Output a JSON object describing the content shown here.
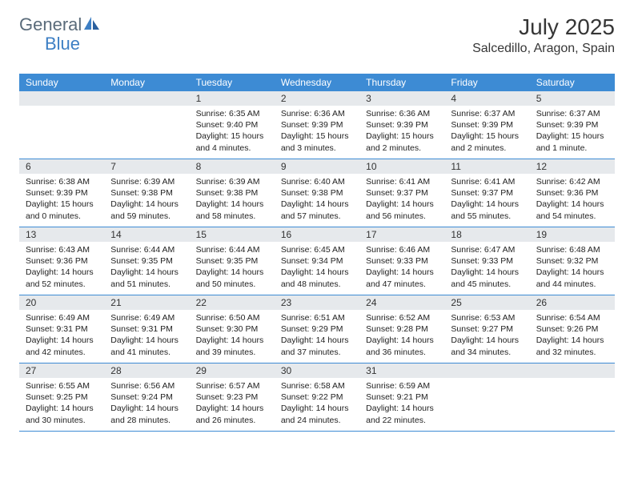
{
  "brand": {
    "part1": "General",
    "part2": "Blue"
  },
  "title": {
    "month": "July 2025",
    "location": "Salcedillo, Aragon, Spain"
  },
  "colors": {
    "header_bg": "#3d8bd4",
    "band_bg": "#e6e9ec",
    "row_divider": "#3d8bd4",
    "text": "#333333",
    "brand_gray": "#5a6b7a",
    "brand_blue": "#3d7fc4",
    "background": "#ffffff"
  },
  "typography": {
    "title_fontsize": 28,
    "location_fontsize": 16,
    "dayheader_fontsize": 12,
    "body_fontsize": 10.5
  },
  "layout": {
    "columns": 7,
    "rows": 5,
    "cell_min_height": 84
  },
  "day_names": [
    "Sunday",
    "Monday",
    "Tuesday",
    "Wednesday",
    "Thursday",
    "Friday",
    "Saturday"
  ],
  "weeks": [
    [
      {
        "date": "",
        "lines": [
          "",
          "",
          "",
          ""
        ]
      },
      {
        "date": "",
        "lines": [
          "",
          "",
          "",
          ""
        ]
      },
      {
        "date": "1",
        "lines": [
          "Sunrise: 6:35 AM",
          "Sunset: 9:40 PM",
          "Daylight: 15 hours",
          "and 4 minutes."
        ]
      },
      {
        "date": "2",
        "lines": [
          "Sunrise: 6:36 AM",
          "Sunset: 9:39 PM",
          "Daylight: 15 hours",
          "and 3 minutes."
        ]
      },
      {
        "date": "3",
        "lines": [
          "Sunrise: 6:36 AM",
          "Sunset: 9:39 PM",
          "Daylight: 15 hours",
          "and 2 minutes."
        ]
      },
      {
        "date": "4",
        "lines": [
          "Sunrise: 6:37 AM",
          "Sunset: 9:39 PM",
          "Daylight: 15 hours",
          "and 2 minutes."
        ]
      },
      {
        "date": "5",
        "lines": [
          "Sunrise: 6:37 AM",
          "Sunset: 9:39 PM",
          "Daylight: 15 hours",
          "and 1 minute."
        ]
      }
    ],
    [
      {
        "date": "6",
        "lines": [
          "Sunrise: 6:38 AM",
          "Sunset: 9:39 PM",
          "Daylight: 15 hours",
          "and 0 minutes."
        ]
      },
      {
        "date": "7",
        "lines": [
          "Sunrise: 6:39 AM",
          "Sunset: 9:38 PM",
          "Daylight: 14 hours",
          "and 59 minutes."
        ]
      },
      {
        "date": "8",
        "lines": [
          "Sunrise: 6:39 AM",
          "Sunset: 9:38 PM",
          "Daylight: 14 hours",
          "and 58 minutes."
        ]
      },
      {
        "date": "9",
        "lines": [
          "Sunrise: 6:40 AM",
          "Sunset: 9:38 PM",
          "Daylight: 14 hours",
          "and 57 minutes."
        ]
      },
      {
        "date": "10",
        "lines": [
          "Sunrise: 6:41 AM",
          "Sunset: 9:37 PM",
          "Daylight: 14 hours",
          "and 56 minutes."
        ]
      },
      {
        "date": "11",
        "lines": [
          "Sunrise: 6:41 AM",
          "Sunset: 9:37 PM",
          "Daylight: 14 hours",
          "and 55 minutes."
        ]
      },
      {
        "date": "12",
        "lines": [
          "Sunrise: 6:42 AM",
          "Sunset: 9:36 PM",
          "Daylight: 14 hours",
          "and 54 minutes."
        ]
      }
    ],
    [
      {
        "date": "13",
        "lines": [
          "Sunrise: 6:43 AM",
          "Sunset: 9:36 PM",
          "Daylight: 14 hours",
          "and 52 minutes."
        ]
      },
      {
        "date": "14",
        "lines": [
          "Sunrise: 6:44 AM",
          "Sunset: 9:35 PM",
          "Daylight: 14 hours",
          "and 51 minutes."
        ]
      },
      {
        "date": "15",
        "lines": [
          "Sunrise: 6:44 AM",
          "Sunset: 9:35 PM",
          "Daylight: 14 hours",
          "and 50 minutes."
        ]
      },
      {
        "date": "16",
        "lines": [
          "Sunrise: 6:45 AM",
          "Sunset: 9:34 PM",
          "Daylight: 14 hours",
          "and 48 minutes."
        ]
      },
      {
        "date": "17",
        "lines": [
          "Sunrise: 6:46 AM",
          "Sunset: 9:33 PM",
          "Daylight: 14 hours",
          "and 47 minutes."
        ]
      },
      {
        "date": "18",
        "lines": [
          "Sunrise: 6:47 AM",
          "Sunset: 9:33 PM",
          "Daylight: 14 hours",
          "and 45 minutes."
        ]
      },
      {
        "date": "19",
        "lines": [
          "Sunrise: 6:48 AM",
          "Sunset: 9:32 PM",
          "Daylight: 14 hours",
          "and 44 minutes."
        ]
      }
    ],
    [
      {
        "date": "20",
        "lines": [
          "Sunrise: 6:49 AM",
          "Sunset: 9:31 PM",
          "Daylight: 14 hours",
          "and 42 minutes."
        ]
      },
      {
        "date": "21",
        "lines": [
          "Sunrise: 6:49 AM",
          "Sunset: 9:31 PM",
          "Daylight: 14 hours",
          "and 41 minutes."
        ]
      },
      {
        "date": "22",
        "lines": [
          "Sunrise: 6:50 AM",
          "Sunset: 9:30 PM",
          "Daylight: 14 hours",
          "and 39 minutes."
        ]
      },
      {
        "date": "23",
        "lines": [
          "Sunrise: 6:51 AM",
          "Sunset: 9:29 PM",
          "Daylight: 14 hours",
          "and 37 minutes."
        ]
      },
      {
        "date": "24",
        "lines": [
          "Sunrise: 6:52 AM",
          "Sunset: 9:28 PM",
          "Daylight: 14 hours",
          "and 36 minutes."
        ]
      },
      {
        "date": "25",
        "lines": [
          "Sunrise: 6:53 AM",
          "Sunset: 9:27 PM",
          "Daylight: 14 hours",
          "and 34 minutes."
        ]
      },
      {
        "date": "26",
        "lines": [
          "Sunrise: 6:54 AM",
          "Sunset: 9:26 PM",
          "Daylight: 14 hours",
          "and 32 minutes."
        ]
      }
    ],
    [
      {
        "date": "27",
        "lines": [
          "Sunrise: 6:55 AM",
          "Sunset: 9:25 PM",
          "Daylight: 14 hours",
          "and 30 minutes."
        ]
      },
      {
        "date": "28",
        "lines": [
          "Sunrise: 6:56 AM",
          "Sunset: 9:24 PM",
          "Daylight: 14 hours",
          "and 28 minutes."
        ]
      },
      {
        "date": "29",
        "lines": [
          "Sunrise: 6:57 AM",
          "Sunset: 9:23 PM",
          "Daylight: 14 hours",
          "and 26 minutes."
        ]
      },
      {
        "date": "30",
        "lines": [
          "Sunrise: 6:58 AM",
          "Sunset: 9:22 PM",
          "Daylight: 14 hours",
          "and 24 minutes."
        ]
      },
      {
        "date": "31",
        "lines": [
          "Sunrise: 6:59 AM",
          "Sunset: 9:21 PM",
          "Daylight: 14 hours",
          "and 22 minutes."
        ]
      },
      {
        "date": "",
        "lines": [
          "",
          "",
          "",
          ""
        ]
      },
      {
        "date": "",
        "lines": [
          "",
          "",
          "",
          ""
        ]
      }
    ]
  ]
}
